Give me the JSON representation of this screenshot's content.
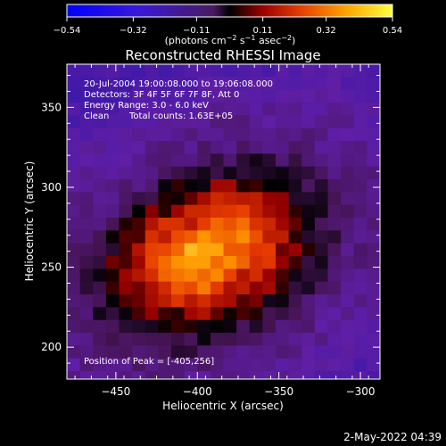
{
  "chart_data": {
    "type": "heatmap",
    "title": "Reconstructed RHESSI Image",
    "xlabel": "Heliocentric X (arcsec)",
    "ylabel": "Heliocentric Y (arcsec)",
    "xlim": [
      -480,
      -288
    ],
    "ylim": [
      180,
      377
    ],
    "x_ticks": [
      -450,
      -400,
      -350,
      -300
    ],
    "y_ticks": [
      200,
      250,
      300,
      350
    ],
    "colorbar": {
      "range": [
        -0.54,
        0.54
      ],
      "ticks": [
        -0.54,
        -0.32,
        -0.11,
        0.11,
        0.32,
        0.54
      ],
      "tick_labels": [
        "−0.54",
        "−0.32",
        "−0.11",
        "0.11",
        "0.32",
        "0.54"
      ],
      "unit_parts": [
        "(photons cm",
        "−2",
        " s",
        "−1",
        " asec",
        "−2",
        ")"
      ]
    },
    "peak": [
      -405,
      256
    ],
    "source_center": [
      -392,
      258
    ],
    "colors": {
      "background": "#000000",
      "cbar_low": "#0000ff",
      "cbar_mid": "#5e1ea6",
      "cbar_high": "#ffff00"
    }
  },
  "annotations": {
    "time_range": "20-Jul-2004 19:00:08.000 to 19:06:08.000",
    "detectors": "Detectors: 3F 4F 5F 6F 7F 8F, Att 0",
    "energy": "Energy Range: 3.0 - 6.0 keV",
    "method": "Clean",
    "counts": "Total counts: 1.63E+05",
    "peak_label": "Position of Peak = [-405,256]"
  },
  "footer": {
    "timestamp": "2-May-2022 04:39"
  }
}
